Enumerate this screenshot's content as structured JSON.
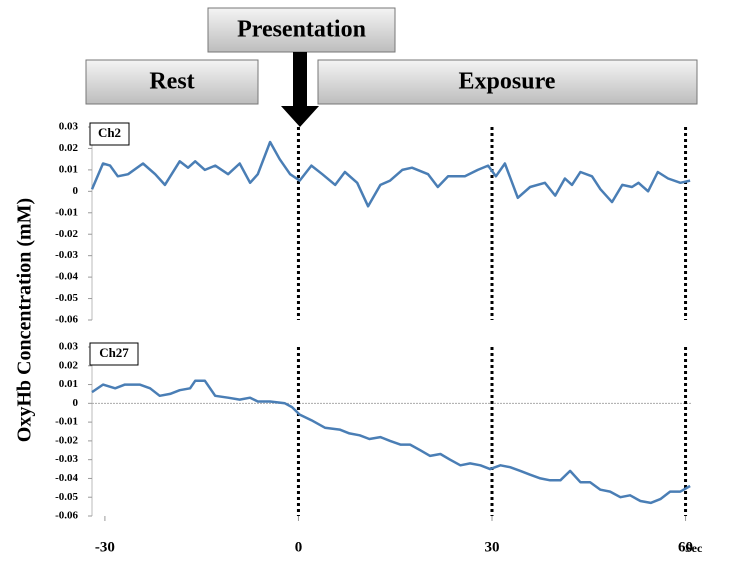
{
  "header": {
    "presentation": "Presentation",
    "rest": "Rest",
    "exposure": "Exposure"
  },
  "axes": {
    "y_label": "OxyHb Concentration  (mM)",
    "x_unit": "Sec",
    "xlim": [
      -32,
      61
    ],
    "xticks": [
      -30,
      0,
      30,
      60
    ],
    "markers": [
      0,
      30,
      60
    ]
  },
  "chart_data": [
    {
      "type": "line",
      "title": "Ch2",
      "color": "#4a7eb5",
      "x": [
        -32,
        -30.3,
        -29.2,
        -28,
        -26.4,
        -24.1,
        -22.2,
        -20.7,
        -18.4,
        -17.1,
        -16,
        -14.5,
        -12.9,
        -10.9,
        -9.1,
        -7.5,
        -6.3,
        -4.4,
        -2.9,
        -1.3,
        0.2,
        2,
        3.7,
        5.7,
        7.2,
        9.1,
        10.8,
        12.7,
        14.2,
        16.1,
        17.6,
        20.1,
        21.6,
        23.2,
        25.8,
        27.8,
        29.4,
        30.6,
        32,
        34,
        35.9,
        38.2,
        39.8,
        41.3,
        42.4,
        43.7,
        45.5,
        46.8,
        48.6,
        50.2,
        51.7,
        52.7,
        54.2,
        55.7,
        57.3,
        59.2,
        60.7
      ],
      "series": [
        {
          "values": [
            0.001,
            0.013,
            0.012,
            0.007,
            0.008,
            0.013,
            0.008,
            0.003,
            0.014,
            0.011,
            0.014,
            0.01,
            0.012,
            0.008,
            0.013,
            0.004,
            0.008,
            0.023,
            0.015,
            0.008,
            0.005,
            0.012,
            0.008,
            0.003,
            0.009,
            0.004,
            -0.007,
            0.003,
            0.005,
            0.01,
            0.011,
            0.008,
            0.002,
            0.007,
            0.007,
            0.01,
            0.012,
            0.007,
            0.013,
            -0.003,
            0.002,
            0.004,
            -0.002,
            0.006,
            0.003,
            0.009,
            0.007,
            0.001,
            -0.005,
            0.003,
            0.002,
            0.004,
            0,
            0.009,
            0.006,
            0.004,
            0.005
          ]
        }
      ],
      "ylim": [
        -0.06,
        0.03
      ],
      "yticks": [
        0.03,
        0.02,
        0.01,
        0,
        -0.01,
        -0.02,
        -0.03,
        -0.04,
        -0.05,
        -0.06
      ]
    },
    {
      "type": "line",
      "title": "Ch27",
      "color": "#4a7eb5",
      "x": [
        -32,
        -30.3,
        -28.4,
        -26.9,
        -24.6,
        -23,
        -21.5,
        -19.9,
        -18.4,
        -16.8,
        -16,
        -14.5,
        -12.9,
        -10.9,
        -9.1,
        -7.5,
        -6.3,
        -4.4,
        -2.1,
        -1,
        0.2,
        2,
        4.1,
        6.4,
        7.9,
        9.5,
        11,
        12.7,
        14.2,
        15.8,
        17.3,
        18.9,
        20.4,
        22,
        23.5,
        25.1,
        26.6,
        28.2,
        29.7,
        31.3,
        32.8,
        34.4,
        35.9,
        37.5,
        39,
        40.6,
        42.1,
        43.7,
        45.2,
        46.8,
        48.3,
        49.9,
        51.4,
        53,
        54.6,
        56.1,
        57.6,
        59.2,
        60.7
      ],
      "series": [
        {
          "values": [
            0.006,
            0.01,
            0.008,
            0.01,
            0.01,
            0.008,
            0.004,
            0.005,
            0.007,
            0.008,
            0.012,
            0.012,
            0.004,
            0.003,
            0.002,
            0.003,
            0.001,
            0.001,
            0,
            -0.002,
            -0.006,
            -0.009,
            -0.013,
            -0.014,
            -0.016,
            -0.017,
            -0.019,
            -0.018,
            -0.02,
            -0.022,
            -0.022,
            -0.025,
            -0.028,
            -0.027,
            -0.03,
            -0.033,
            -0.032,
            -0.033,
            -0.035,
            -0.033,
            -0.034,
            -0.036,
            -0.038,
            -0.04,
            -0.041,
            -0.041,
            -0.036,
            -0.042,
            -0.042,
            -0.046,
            -0.047,
            -0.05,
            -0.049,
            -0.052,
            -0.053,
            -0.051,
            -0.047,
            -0.047,
            -0.044
          ]
        }
      ],
      "ylim": [
        -0.06,
        0.03
      ],
      "yticks": [
        0.03,
        0.02,
        0.01,
        0,
        -0.01,
        -0.02,
        -0.03,
        -0.04,
        -0.05,
        -0.06
      ]
    }
  ]
}
